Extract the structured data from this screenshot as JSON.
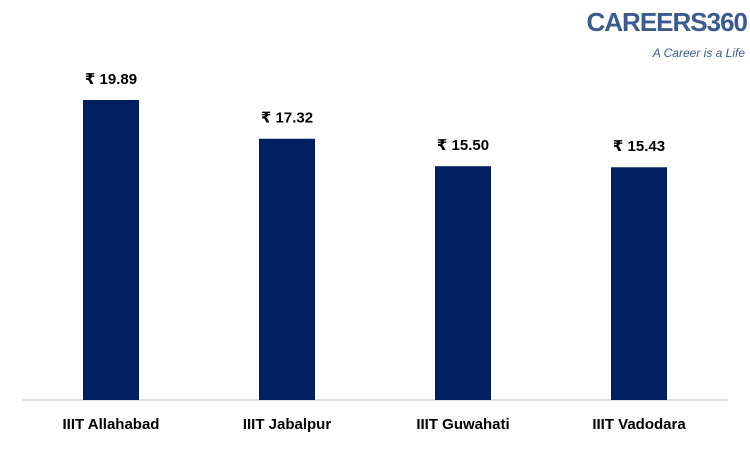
{
  "chart_data": {
    "type": "bar",
    "categories": [
      "IIIT Allahabad",
      "IIIT Jabalpur",
      "IIIT Guwahati",
      "IIIT Vadodara"
    ],
    "values": [
      19.89,
      17.32,
      15.5,
      15.43
    ],
    "value_labels": [
      "₹ 19.89",
      "₹ 17.32",
      "₹ 15.50",
      "₹ 15.43"
    ],
    "color": "#002060",
    "ylim": [
      0,
      24
    ]
  },
  "logo": {
    "text": "CAREERS360",
    "tagline": "A Career is a Life"
  }
}
